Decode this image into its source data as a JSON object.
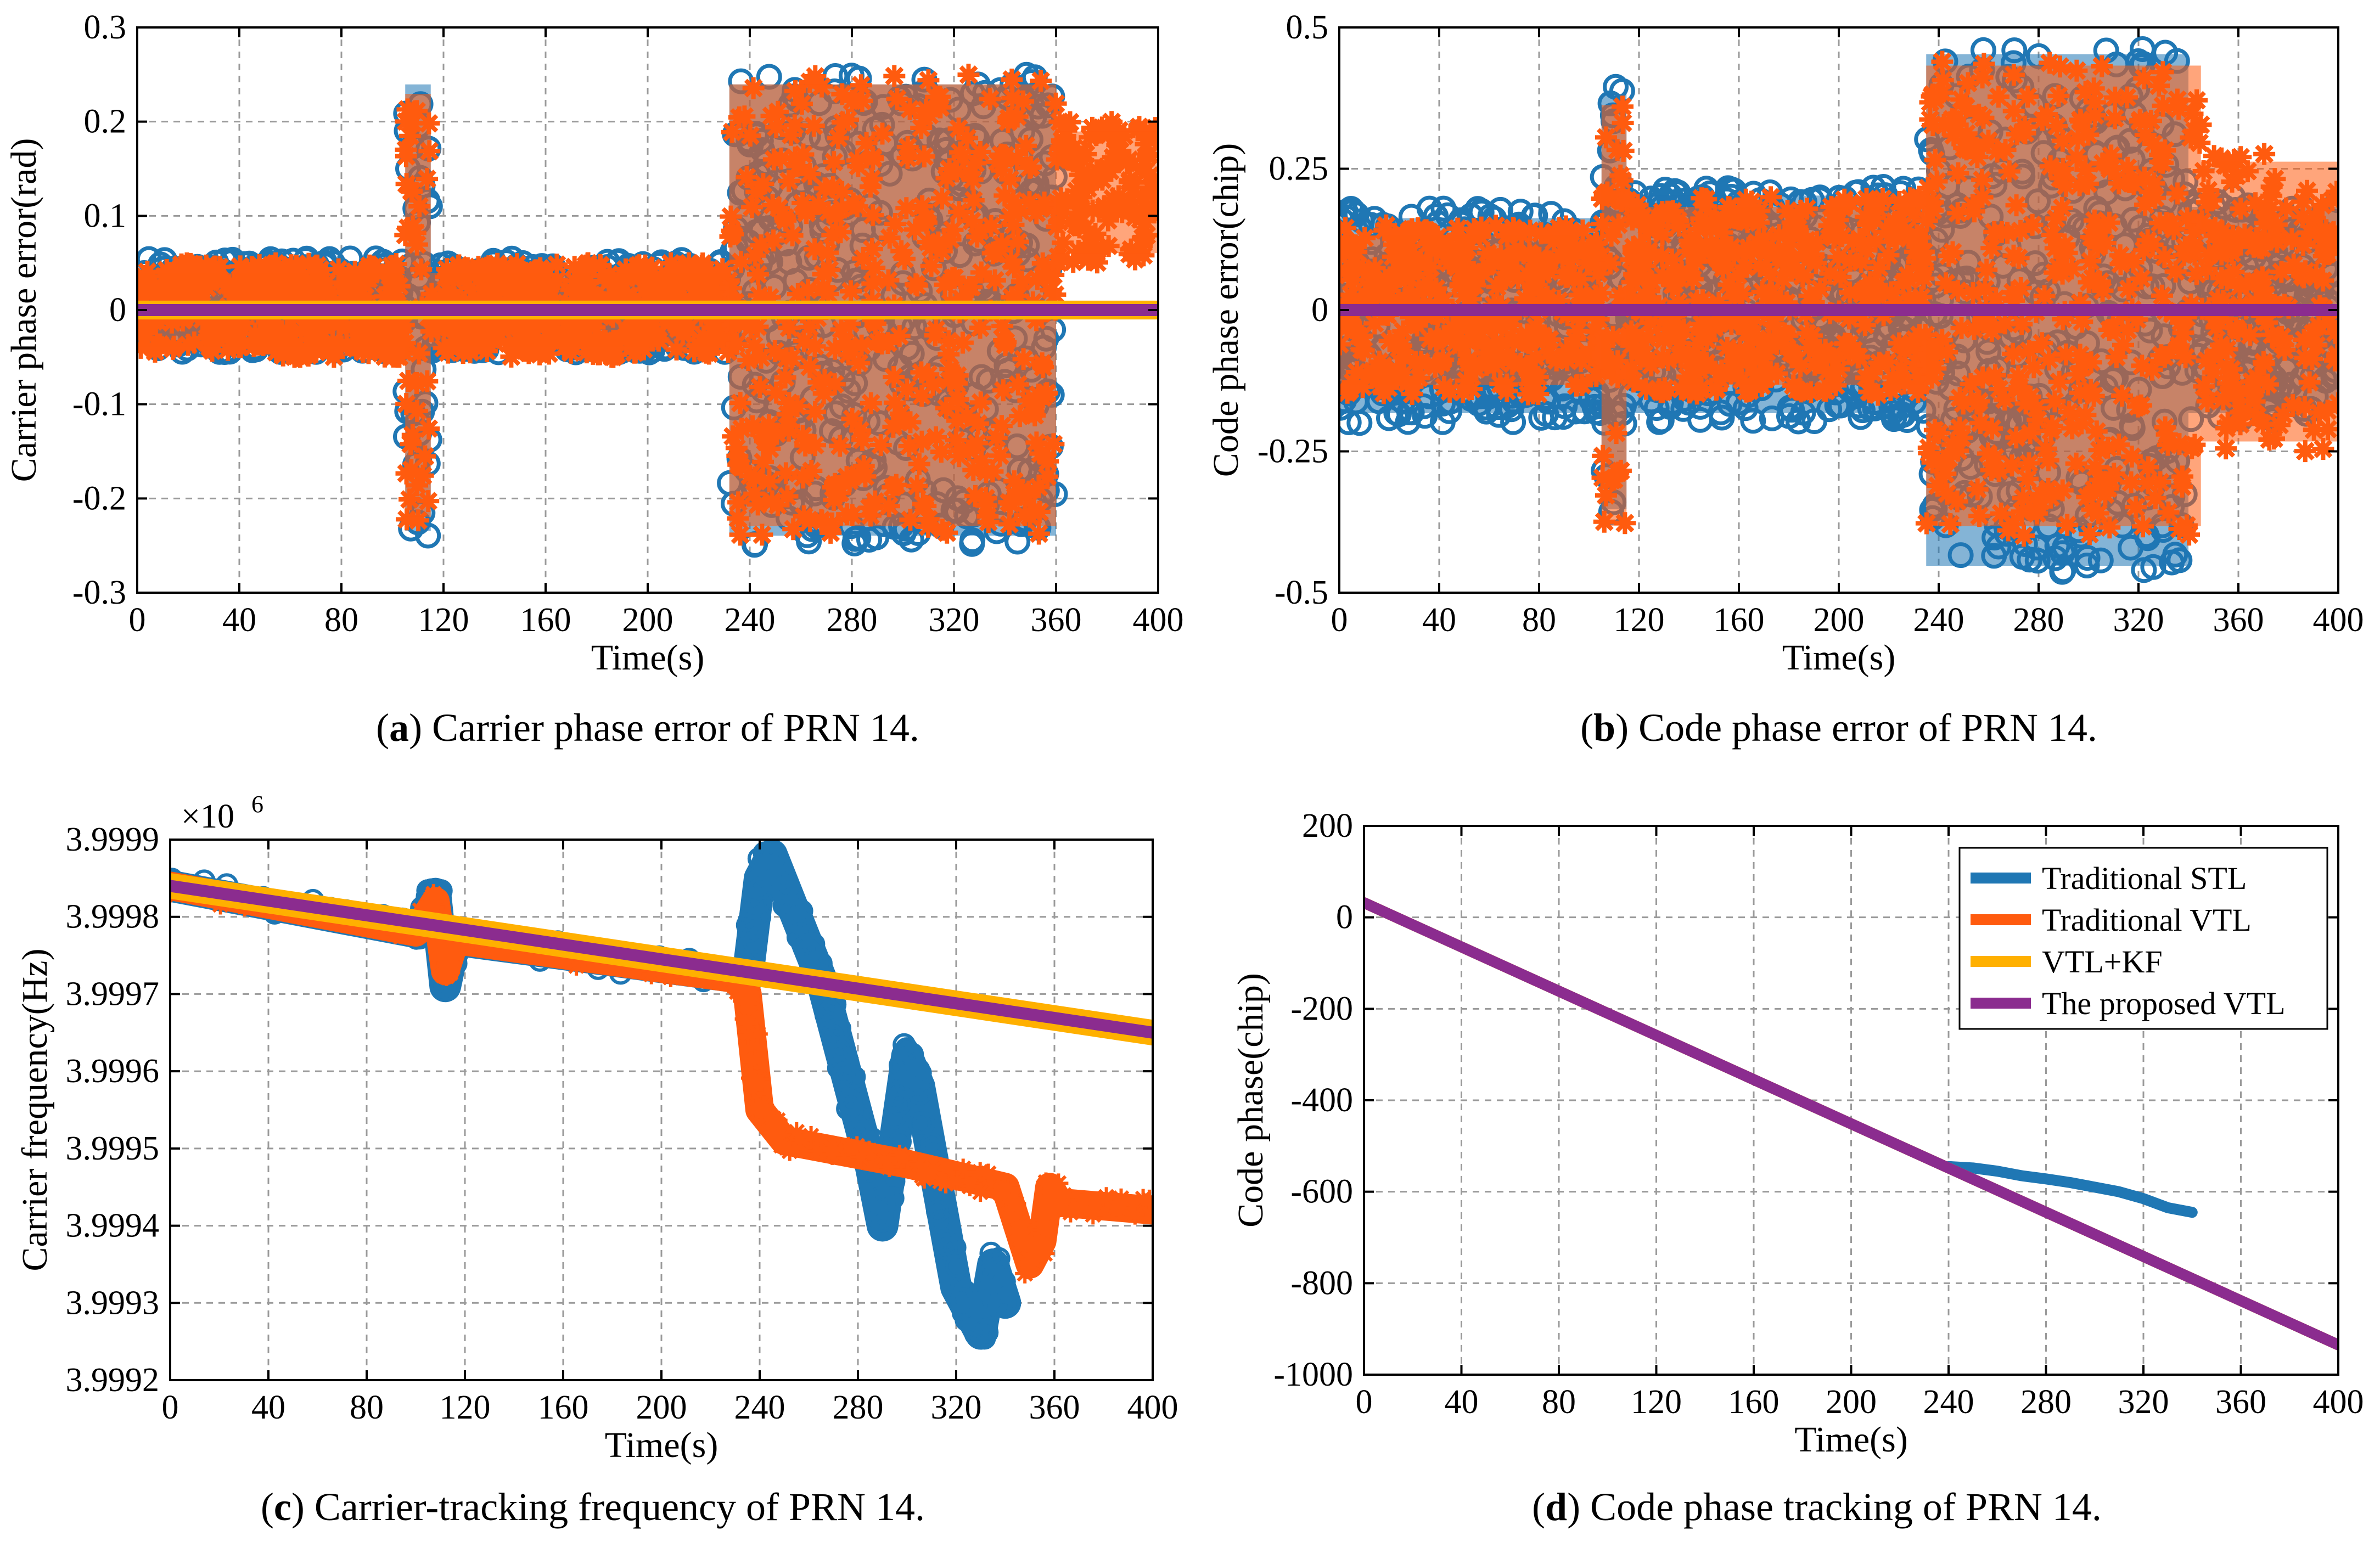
{
  "figure": {
    "panels": [
      {
        "id": "a",
        "letter": "a",
        "caption": " Carrier phase error of PRN 14.",
        "open": "(",
        "close": ")"
      },
      {
        "id": "b",
        "letter": "b",
        "caption": " Code phase error of PRN 14.",
        "open": "(",
        "close": ")"
      },
      {
        "id": "c",
        "letter": "c",
        "caption": " Carrier-tracking frequency of PRN 14.",
        "open": "(",
        "close": ")"
      },
      {
        "id": "d",
        "letter": "d",
        "caption": " Code phase tracking of PRN 14.",
        "open": "(",
        "close": ")"
      }
    ]
  },
  "chart_data": [
    {
      "id": "a",
      "type": "scatter",
      "title": "",
      "xlabel": "Time(s)",
      "ylabel": "Carrier phase error(rad)",
      "xlim": [
        0,
        400
      ],
      "ylim": [
        -0.3,
        0.3
      ],
      "xticks": [
        0,
        40,
        80,
        120,
        160,
        200,
        240,
        280,
        320,
        360,
        400
      ],
      "yticks": [
        -0.3,
        -0.2,
        -0.1,
        0,
        0.1,
        0.2,
        0.3
      ],
      "ytick_labels": [
        "-0.3",
        "-0.2",
        "-0.1",
        "0",
        "0.1",
        "0.2",
        "0.3"
      ],
      "grid": true,
      "series": [
        {
          "name": "Traditional STL",
          "color": "#1f77b4",
          "marker": "circle",
          "envelope": [
            {
              "x": [
                0,
                105
              ],
              "low": -0.045,
              "high": 0.055
            },
            {
              "x": [
                105,
                115
              ],
              "low": -0.245,
              "high": 0.25
            },
            {
              "x": [
                115,
                232
              ],
              "low": -0.045,
              "high": 0.055
            },
            {
              "x": [
                232,
                325
              ],
              "low": -0.25,
              "high": 0.25
            },
            {
              "x": [
                325,
                360
              ],
              "low": -0.25,
              "high": 0.25
            }
          ]
        },
        {
          "name": "Traditional VTL",
          "color": "#ff5b0f",
          "marker": "asterisk",
          "envelope": [
            {
              "x": [
                0,
                105
              ],
              "low": -0.05,
              "high": 0.05
            },
            {
              "x": [
                105,
                115
              ],
              "low": -0.23,
              "high": 0.24
            },
            {
              "x": [
                115,
                232
              ],
              "low": -0.05,
              "high": 0.05
            },
            {
              "x": [
                232,
                360
              ],
              "low": -0.24,
              "high": 0.25
            },
            {
              "x": [
                360,
                400
              ],
              "low": 0.05,
              "high": 0.2
            }
          ]
        },
        {
          "name": "VTL+KF",
          "color": "#ffb000",
          "marker": "line",
          "envelope": [
            {
              "x": [
                0,
                400
              ],
              "low": -0.01,
              "high": 0.01
            }
          ]
        },
        {
          "name": "The proposed VTL",
          "color": "#8b2c8f",
          "marker": "line",
          "x": [
            0,
            400
          ],
          "values": [
            0,
            0
          ]
        }
      ]
    },
    {
      "id": "b",
      "type": "scatter",
      "title": "",
      "xlabel": "Time(s)",
      "ylabel": "Code phase error(chip)",
      "xlim": [
        0,
        400
      ],
      "ylim": [
        -0.5,
        0.5
      ],
      "xticks": [
        0,
        40,
        80,
        120,
        160,
        200,
        240,
        280,
        320,
        360,
        400
      ],
      "yticks": [
        -0.5,
        -0.25,
        0,
        0.25,
        0.5
      ],
      "ytick_labels": [
        "-0.5",
        "-0.25",
        "0",
        "0.25",
        "0.5"
      ],
      "grid": true,
      "series": [
        {
          "name": "Traditional STL",
          "color": "#1f77b4",
          "marker": "circle",
          "envelope": [
            {
              "x": [
                0,
                105
              ],
              "low": -0.2,
              "high": 0.18
            },
            {
              "x": [
                105,
                115
              ],
              "low": -0.37,
              "high": 0.4
            },
            {
              "x": [
                115,
                235
              ],
              "low": -0.2,
              "high": 0.22
            },
            {
              "x": [
                235,
                340
              ],
              "low": -0.47,
              "high": 0.47
            },
            {
              "x": [
                340,
                400
              ],
              "low": -0.2,
              "high": 0.2
            }
          ]
        },
        {
          "name": "Traditional VTL",
          "color": "#ff5b0f",
          "marker": "asterisk",
          "envelope": [
            {
              "x": [
                0,
                105
              ],
              "low": -0.15,
              "high": 0.15
            },
            {
              "x": [
                105,
                115
              ],
              "low": -0.4,
              "high": 0.38
            },
            {
              "x": [
                115,
                235
              ],
              "low": -0.15,
              "high": 0.2
            },
            {
              "x": [
                235,
                345
              ],
              "low": -0.4,
              "high": 0.45
            },
            {
              "x": [
                345,
                400
              ],
              "low": -0.25,
              "high": 0.28
            }
          ]
        },
        {
          "name": "VTL+KF",
          "color": "#ffb000",
          "marker": "line",
          "envelope": [
            {
              "x": [
                0,
                400
              ],
              "low": -0.01,
              "high": 0.01
            }
          ]
        },
        {
          "name": "The proposed VTL",
          "color": "#8b2c8f",
          "marker": "line",
          "x": [
            0,
            400
          ],
          "values": [
            0,
            0
          ]
        }
      ]
    },
    {
      "id": "c",
      "type": "line",
      "title": "",
      "xlabel": "Time(s)",
      "ylabel": "Carrier frequency(Hz)",
      "exponent_label": "×10",
      "exponent_power": "6",
      "xlim": [
        0,
        400
      ],
      "ylim": [
        3.9992,
        3.9999
      ],
      "xticks": [
        0,
        40,
        80,
        120,
        160,
        200,
        240,
        280,
        320,
        360,
        400
      ],
      "yticks": [
        3.9992,
        3.9993,
        3.9994,
        3.9995,
        3.9996,
        3.9997,
        3.9998,
        3.9999
      ],
      "ytick_labels": [
        "3.9992",
        "3.9993",
        "3.9994",
        "3.9995",
        "3.9996",
        "3.9997",
        "3.9998",
        "3.9999"
      ],
      "grid": true,
      "series": [
        {
          "name": "Traditional STL",
          "color": "#1f77b4",
          "x": [
            0,
            100,
            108,
            112,
            116,
            235,
            240,
            245,
            255,
            265,
            275,
            285,
            290,
            300,
            305,
            320,
            330,
            335,
            340
          ],
          "values": [
            3.99984,
            3.99978,
            3.99983,
            3.99971,
            3.99977,
            3.99972,
            3.99985,
            3.99988,
            3.9998,
            3.99972,
            3.9996,
            3.99948,
            3.9994,
            3.99962,
            3.99958,
            3.99932,
            3.99926,
            3.99935,
            3.9993
          ],
          "band": 1.2e-05
        },
        {
          "name": "Traditional VTL",
          "color": "#ff5b0f",
          "x": [
            0,
            100,
            108,
            112,
            116,
            230,
            235,
            240,
            250,
            300,
            340,
            350,
            355,
            358,
            362,
            400
          ],
          "values": [
            3.99984,
            3.99978,
            3.99982,
            3.99973,
            3.99977,
            3.99972,
            3.9997,
            3.99955,
            3.99951,
            3.99948,
            3.99945,
            3.99935,
            3.99938,
            3.99945,
            3.99943,
            3.99942
          ],
          "band": 1e-05
        },
        {
          "name": "VTL+KF",
          "color": "#ffb000",
          "x": [
            0,
            400
          ],
          "values": [
            3.99984,
            3.99965
          ],
          "band": 8e-06
        },
        {
          "name": "The proposed VTL",
          "color": "#8b2c8f",
          "x": [
            0,
            400
          ],
          "values": [
            3.99984,
            3.99965
          ]
        }
      ]
    },
    {
      "id": "d",
      "type": "line",
      "title": "",
      "xlabel": "Time(s)",
      "ylabel": "Code phase(chip)",
      "xlim": [
        0,
        400
      ],
      "ylim": [
        -1000,
        200
      ],
      "xticks": [
        0,
        40,
        80,
        120,
        160,
        200,
        240,
        280,
        320,
        360,
        400
      ],
      "yticks": [
        -1000,
        -800,
        -600,
        -400,
        -200,
        0,
        200
      ],
      "ytick_labels": [
        "-1000",
        "-800",
        "-600",
        "-400",
        "-200",
        "0",
        "200"
      ],
      "grid": true,
      "legend": {
        "position": "top-right",
        "entries": [
          "Traditional STL",
          "Traditional VTL",
          "VTL+KF",
          "The proposed VTL"
        ]
      },
      "series": [
        {
          "name": "Traditional STL",
          "color": "#1f77b4",
          "x": [
            240,
            250,
            260,
            270,
            280,
            290,
            300,
            310,
            320,
            330,
            340
          ],
          "values": [
            -545,
            -548,
            -555,
            -565,
            -572,
            -580,
            -590,
            -600,
            -615,
            -635,
            -645
          ]
        },
        {
          "name": "Traditional VTL",
          "color": "#ff5b0f",
          "x": [
            0,
            400
          ],
          "values": [
            32,
            -935
          ]
        },
        {
          "name": "VTL+KF",
          "color": "#ffb000",
          "x": [
            0,
            400
          ],
          "values": [
            32,
            -935
          ]
        },
        {
          "name": "The proposed VTL",
          "color": "#8b2c8f",
          "x": [
            0,
            400
          ],
          "values": [
            32,
            -935
          ]
        }
      ]
    }
  ]
}
